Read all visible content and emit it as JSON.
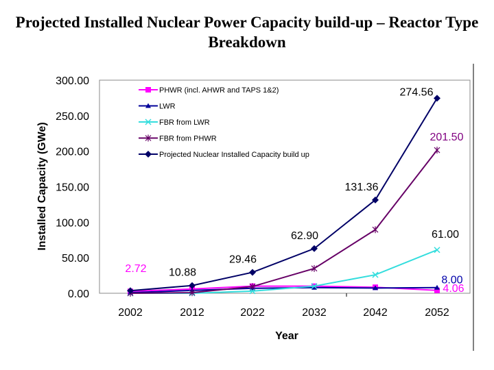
{
  "chart_data": {
    "type": "line",
    "title": "Projected Installed Nuclear Power Capacity build-up – Reactor Type Breakdown",
    "xlabel": "Year",
    "ylabel": "Installed Capacity (GWe)",
    "ylim": [
      0,
      300
    ],
    "yticks": [
      "0.00",
      "50.00",
      "100.00",
      "150.00",
      "200.00",
      "250.00",
      "300.00"
    ],
    "categories": [
      "2002",
      "2012",
      "2022",
      "2032",
      "2042",
      "2052"
    ],
    "grid": false,
    "legend_placement": "top-left",
    "series": [
      {
        "name": "PHWR (incl. AHWR and TAPS 1&2)",
        "color": "#ff00ff",
        "marker": "square",
        "values": [
          2.72,
          6.0,
          10.0,
          10.0,
          8.5,
          4.06
        ]
      },
      {
        "name": "LWR",
        "color": "#000099",
        "marker": "triangle",
        "values": [
          0.9,
          4.0,
          7.0,
          8.0,
          7.36,
          8.0
        ]
      },
      {
        "name": "FBR from LWR",
        "color": "#33dddd",
        "marker": "x",
        "values": [
          0,
          0,
          3.0,
          10.0,
          26.0,
          61.0
        ]
      },
      {
        "name": "FBR from PHWR",
        "color": "#660066",
        "marker": "star",
        "values": [
          0,
          0.88,
          9.46,
          34.9,
          89.5,
          201.5
        ]
      },
      {
        "name": "Projected Nuclear Installed Capacity build up",
        "color": "#000066",
        "marker": "diamond",
        "values": [
          3.62,
          10.88,
          29.46,
          62.9,
          131.36,
          274.56
        ]
      }
    ],
    "data_labels": [
      {
        "text": "2.72",
        "series": 0,
        "index": 0,
        "color": "#ff00ff"
      },
      {
        "text": "10.88",
        "series": 4,
        "index": 1,
        "color": "#000000"
      },
      {
        "text": "29.46",
        "series": 4,
        "index": 2,
        "color": "#000000"
      },
      {
        "text": "62.90",
        "series": 4,
        "index": 3,
        "color": "#000000"
      },
      {
        "text": "131.36",
        "series": 4,
        "index": 4,
        "color": "#000000"
      },
      {
        "text": "274.56",
        "series": 4,
        "index": 5,
        "color": "#000000"
      },
      {
        "text": "201.50",
        "series": 3,
        "index": 5,
        "color": "#800080"
      },
      {
        "text": "61.00",
        "series": 2,
        "index": 5,
        "color": "#000000"
      },
      {
        "text": "8.00",
        "series": 1,
        "index": 5,
        "color": "#0000aa"
      },
      {
        "text": "4.06",
        "series": 0,
        "index": 5,
        "color": "#ff00ff"
      }
    ]
  }
}
